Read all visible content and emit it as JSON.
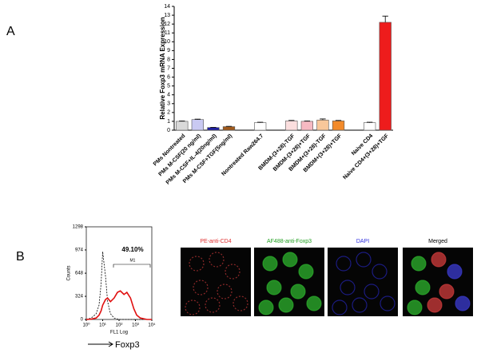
{
  "panel_labels": [
    "A",
    "B"
  ],
  "chart_data": [
    {
      "type": "bar",
      "y_label": "Relative Foxp3 mRNA Expression",
      "categories": [
        "PMs Nontreated",
        "PMs M-CSF(20 ng/ml)",
        "PMs M-CSF+IL-4(20ng/ml)",
        "PMs M-CSF+TGF(5ng/ml)",
        null,
        "Nontreated Raw264.7",
        null,
        "BMDM-(3+28)-TGF",
        "BMDM-(3+28)+TGF",
        "BMDM+(3+28)-TGF",
        "BMDM+(3+28)+TGF",
        null,
        "Naive CD4",
        "Naive CD4+(3+28)+TGF"
      ],
      "values": [
        1.0,
        1.2,
        0.3,
        0.4,
        null,
        0.85,
        null,
        1.05,
        1.0,
        1.15,
        1.05,
        null,
        0.85,
        12.2
      ],
      "errors": [
        0.05,
        0.05,
        0.03,
        0.04,
        null,
        0.05,
        null,
        0.05,
        0.05,
        0.12,
        0.05,
        null,
        0.05,
        0.7
      ],
      "colors": [
        "#d9d9d9",
        "#c9c9f2",
        "#1f1fa0",
        "#a05a1c",
        null,
        "#ffffff",
        null,
        "#fbdede",
        "#f6b9c2",
        "#f8c79a",
        "#f28a2a",
        null,
        "#ffffff",
        "#ee1c1c"
      ],
      "ylim": [
        0,
        14
      ],
      "yticks": [
        0,
        1,
        2,
        3,
        4,
        5,
        6,
        7,
        8,
        9,
        10,
        11,
        12,
        13,
        14
      ]
    },
    {
      "type": "line",
      "y_label": "Counts",
      "x_label": "FL1 Log",
      "marker_label": "Foxp3",
      "annotation": "49.10%",
      "gate_label": "M1",
      "xscale": "log",
      "x": [
        1,
        2,
        4,
        6,
        8,
        10,
        15,
        20,
        30,
        50,
        80,
        120,
        200,
        300,
        500,
        800,
        1200,
        2000,
        5000,
        10000
      ],
      "series": [
        {
          "color": "#000000",
          "dash": true,
          "values": [
            0,
            20,
            80,
            200,
            500,
            950,
            600,
            250,
            80,
            20,
            5,
            0,
            0,
            0,
            0,
            0,
            0,
            0,
            0,
            0
          ]
        },
        {
          "color": "#e01010",
          "dash": false,
          "values": [
            0,
            5,
            20,
            60,
            120,
            200,
            280,
            300,
            250,
            300,
            380,
            400,
            350,
            380,
            300,
            150,
            60,
            20,
            0,
            0
          ]
        }
      ],
      "xlim": [
        1,
        10000
      ],
      "xticks": [
        {
          "value": 1,
          "label": "10⁰"
        },
        {
          "value": 10,
          "label": "10¹"
        },
        {
          "value": 100,
          "label": "10²"
        },
        {
          "value": 1000,
          "label": "10³"
        },
        {
          "value": 10000,
          "label": "10⁴"
        }
      ],
      "ylim": [
        0,
        1298
      ],
      "yticks": [
        0,
        324,
        648,
        974,
        1298
      ]
    }
  ],
  "images": [
    {
      "title": "PE-anti-CD4",
      "color": "#e03030"
    },
    {
      "title": "AF488-anti-Foxp3",
      "color": "#20a020"
    },
    {
      "title": "DAPI",
      "color": "#3030e0"
    },
    {
      "title": "Merged",
      "color": "#000000"
    }
  ]
}
